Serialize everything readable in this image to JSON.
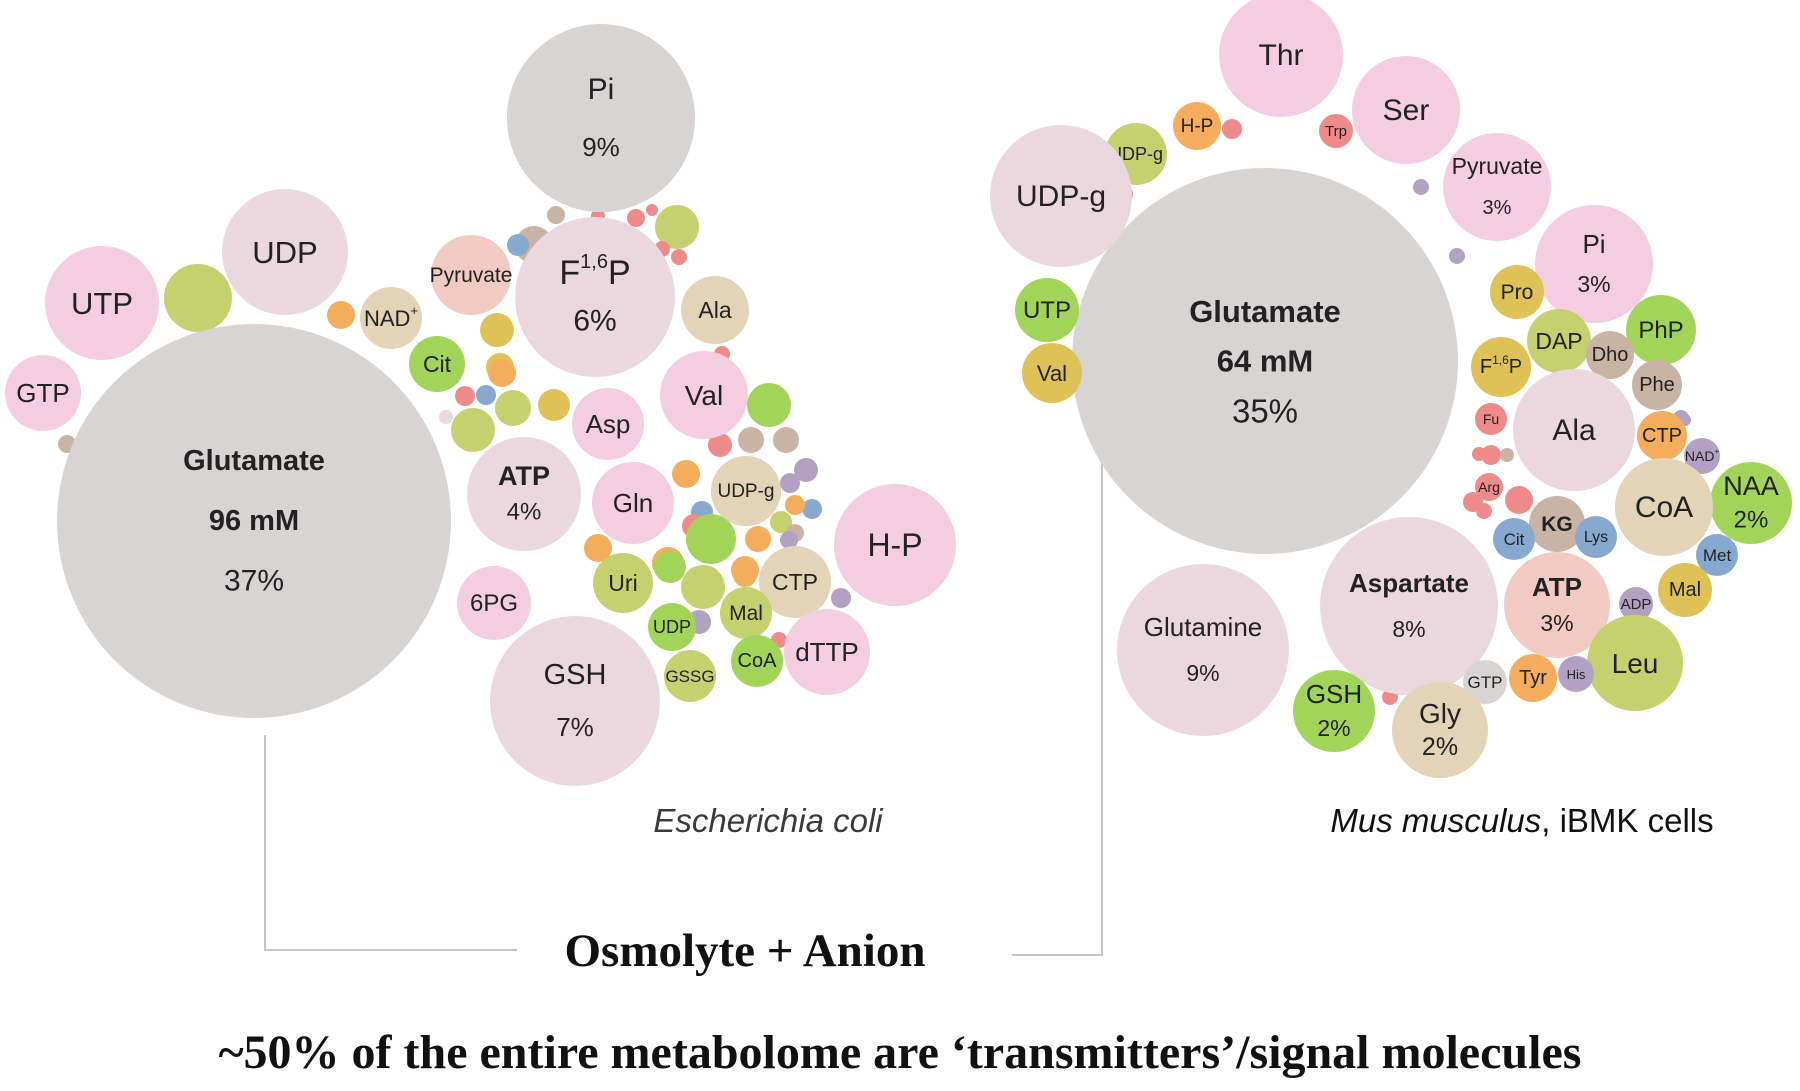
{
  "colors": {
    "grey": "#d8d4d4",
    "lilac": "#ead8de",
    "pink": "#f5cde0",
    "green": "#a3d45a",
    "olive": "#c5d06e",
    "tan": "#e3d3b7",
    "orange": "#f3ad5c",
    "mustard": "#dfc257",
    "blue": "#87a9cf",
    "red": "#ef8a8a",
    "purple": "#b3a1c3",
    "taupe": "#c8b3a4",
    "salmon": "#f1cbc2",
    "connector": "#c4c4c4"
  },
  "ecoli": {
    "caption": "Escherichia coli",
    "bubbles": [
      {
        "id": "glutamate",
        "label": "Glutamate",
        "value": "96 mM",
        "pct": "37%",
        "bold": true,
        "color": "grey"
      },
      {
        "id": "pi",
        "label": "Pi",
        "pct": "9%",
        "color": "grey"
      },
      {
        "id": "udp",
        "label": "UDP",
        "color": "lilac"
      },
      {
        "id": "utp",
        "label": "UTP",
        "color": "pink"
      },
      {
        "id": "gtp",
        "label": "GTP",
        "color": "pink"
      },
      {
        "id": "nad",
        "label": "NAD",
        "sup": "+",
        "color": "tan"
      },
      {
        "id": "cit",
        "label": "Cit",
        "color": "green"
      },
      {
        "id": "pyruvate",
        "label": "Pyruvate",
        "color": "salmon"
      },
      {
        "id": "f16p",
        "label": "F",
        "sup": "1,6",
        "label2": "P",
        "pct": "6%",
        "color": "lilac"
      },
      {
        "id": "ala",
        "label": "Ala",
        "color": "tan"
      },
      {
        "id": "val",
        "label": "Val",
        "color": "pink"
      },
      {
        "id": "asp",
        "label": "Asp",
        "color": "pink"
      },
      {
        "id": "atp",
        "label": "ATP",
        "pct": "4%",
        "bold": true,
        "color": "lilac"
      },
      {
        "id": "gln",
        "label": "Gln",
        "color": "pink"
      },
      {
        "id": "udpg",
        "label": "UDP-g",
        "color": "tan"
      },
      {
        "id": "hp",
        "label": "H-P",
        "color": "pink"
      },
      {
        "id": "ctp",
        "label": "CTP",
        "color": "tan"
      },
      {
        "id": "uri",
        "label": "Uri",
        "color": "olive"
      },
      {
        "id": "mal",
        "label": "Mal",
        "color": "olive"
      },
      {
        "id": "udp2",
        "label": "UDP",
        "color": "green"
      },
      {
        "id": "dttp",
        "label": "dTTP",
        "color": "pink"
      },
      {
        "id": "coa",
        "label": "CoA",
        "color": "green"
      },
      {
        "id": "gssg",
        "label": "GSSG",
        "color": "olive"
      },
      {
        "id": "gsh",
        "label": "GSH",
        "pct": "7%",
        "color": "lilac"
      },
      {
        "id": "6pg",
        "label": "6PG",
        "color": "pink"
      }
    ]
  },
  "mouse": {
    "caption_italic": "Mus musculus",
    "caption_rest": ", iBMK cells",
    "bubbles": [
      {
        "id": "glutamate",
        "label": "Glutamate",
        "value": "64 mM",
        "pct": "35%",
        "bold": true,
        "color": "grey"
      },
      {
        "id": "thr",
        "label": "Thr",
        "color": "pink"
      },
      {
        "id": "ser",
        "label": "Ser",
        "color": "pink"
      },
      {
        "id": "hp",
        "label": "H-P",
        "color": "orange"
      },
      {
        "id": "trp",
        "label": "Trp",
        "color": "red"
      },
      {
        "id": "udpg_small",
        "label": "UDP-g",
        "color": "olive"
      },
      {
        "id": "udpg",
        "label": "UDP-g",
        "color": "lilac"
      },
      {
        "id": "pyruvate",
        "label": "Pyruvate",
        "pct": "3%",
        "color": "pink"
      },
      {
        "id": "pi",
        "label": "Pi",
        "pct": "3%",
        "color": "pink"
      },
      {
        "id": "utp",
        "label": "UTP",
        "color": "green"
      },
      {
        "id": "val",
        "label": "Val",
        "color": "mustard"
      },
      {
        "id": "pro",
        "label": "Pro",
        "color": "mustard"
      },
      {
        "id": "php",
        "label": "PhP",
        "color": "green"
      },
      {
        "id": "dap",
        "label": "DAP",
        "color": "olive"
      },
      {
        "id": "dho",
        "label": "Dho",
        "color": "taupe"
      },
      {
        "id": "f16p",
        "label": "F",
        "sup": "1,6",
        "label2": "P",
        "color": "mustard"
      },
      {
        "id": "phe",
        "label": "Phe",
        "color": "taupe"
      },
      {
        "id": "fu",
        "label": "Fu",
        "color": "red"
      },
      {
        "id": "ala",
        "label": "Ala",
        "color": "lilac"
      },
      {
        "id": "ctp",
        "label": "CTP",
        "color": "orange"
      },
      {
        "id": "nad",
        "label": "NAD",
        "sup": "+",
        "color": "purple"
      },
      {
        "id": "naa",
        "label": "NAA",
        "pct": "2%",
        "color": "green"
      },
      {
        "id": "arg",
        "label": "Arg",
        "color": "red"
      },
      {
        "id": "coa",
        "label": "CoA",
        "color": "tan"
      },
      {
        "id": "kg",
        "label": "KG",
        "bold": true,
        "color": "taupe"
      },
      {
        "id": "cit",
        "label": "Cit",
        "color": "blue"
      },
      {
        "id": "lys",
        "label": "Lys",
        "color": "blue"
      },
      {
        "id": "met",
        "label": "Met",
        "color": "blue"
      },
      {
        "id": "glutamine",
        "label": "Glutamine",
        "pct": "9%",
        "color": "lilac"
      },
      {
        "id": "aspartate",
        "label": "Aspartate",
        "pct": "8%",
        "bold": true,
        "color": "lilac"
      },
      {
        "id": "atp",
        "label": "ATP",
        "pct": "3%",
        "bold": true,
        "color": "salmon"
      },
      {
        "id": "adp",
        "label": "ADP",
        "color": "purple"
      },
      {
        "id": "mal",
        "label": "Mal",
        "color": "mustard"
      },
      {
        "id": "leu",
        "label": "Leu",
        "color": "olive"
      },
      {
        "id": "gtp",
        "label": "GTP",
        "color": "grey"
      },
      {
        "id": "tyr",
        "label": "Tyr",
        "color": "orange"
      },
      {
        "id": "his",
        "label": "His",
        "color": "purple"
      },
      {
        "id": "gsh",
        "label": "GSH",
        "pct": "2%",
        "color": "green"
      },
      {
        "id": "gly",
        "label": "Gly",
        "pct": "2%",
        "color": "tan"
      }
    ]
  },
  "bottom": {
    "connector_label": "Osmolyte + Anion",
    "headline": "~50% of the entire metabolome are ‘transmitters’/signal molecules"
  }
}
